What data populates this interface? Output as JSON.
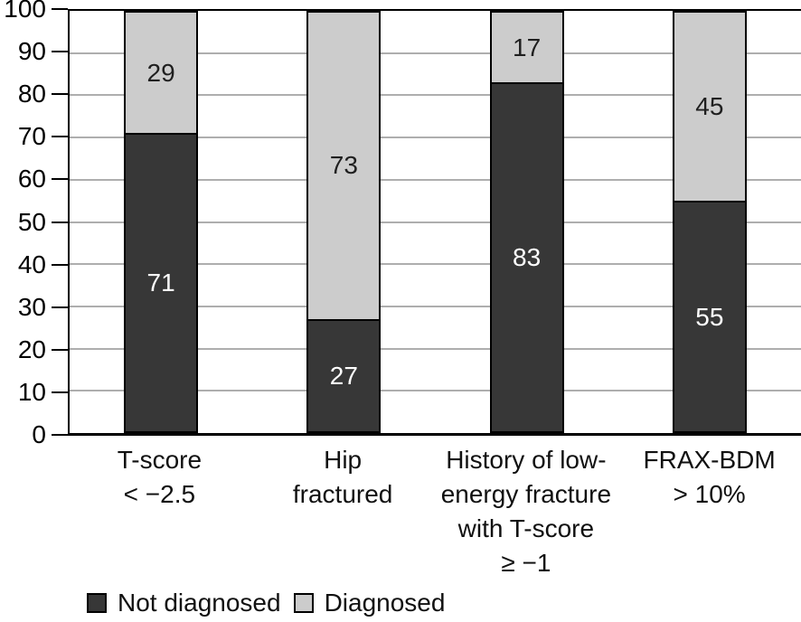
{
  "chart_data": {
    "type": "bar",
    "variant": "stacked-vertical-column",
    "title": "",
    "xlabel": "",
    "ylabel": "",
    "categories": [
      [
        "T-score",
        "< −2.5"
      ],
      [
        "Hip",
        "fractured"
      ],
      [
        "History of low-",
        "energy fracture",
        "with T-score",
        "≥ −1"
      ],
      [
        "FRAX-BDM",
        "> 10%"
      ]
    ],
    "series": [
      {
        "name": "Not diagnosed",
        "values": [
          71,
          27,
          83,
          55
        ],
        "color": "#373737",
        "label_color": "#ffffff"
      },
      {
        "name": "Diagnosed",
        "values": [
          29,
          73,
          17,
          45
        ],
        "color": "#cccccc",
        "label_color": "#1f1f1f"
      }
    ],
    "stack_order_bottom_to_top": [
      "Not diagnosed",
      "Diagnosed"
    ],
    "data_labels_shown": true,
    "ylim": [
      0,
      100
    ],
    "yticks": [
      0,
      10,
      20,
      30,
      40,
      50,
      60,
      70,
      80,
      90,
      100
    ],
    "grid": "horizontal",
    "legend_position": "bottom-left",
    "colors": {
      "axis": "#000000",
      "gridline": "#aeaeae",
      "background": "#ffffff"
    }
  },
  "legend": {
    "items": [
      {
        "label": "Not diagnosed",
        "color": "#373737"
      },
      {
        "label": "Diagnosed",
        "color": "#cccccc"
      }
    ]
  }
}
